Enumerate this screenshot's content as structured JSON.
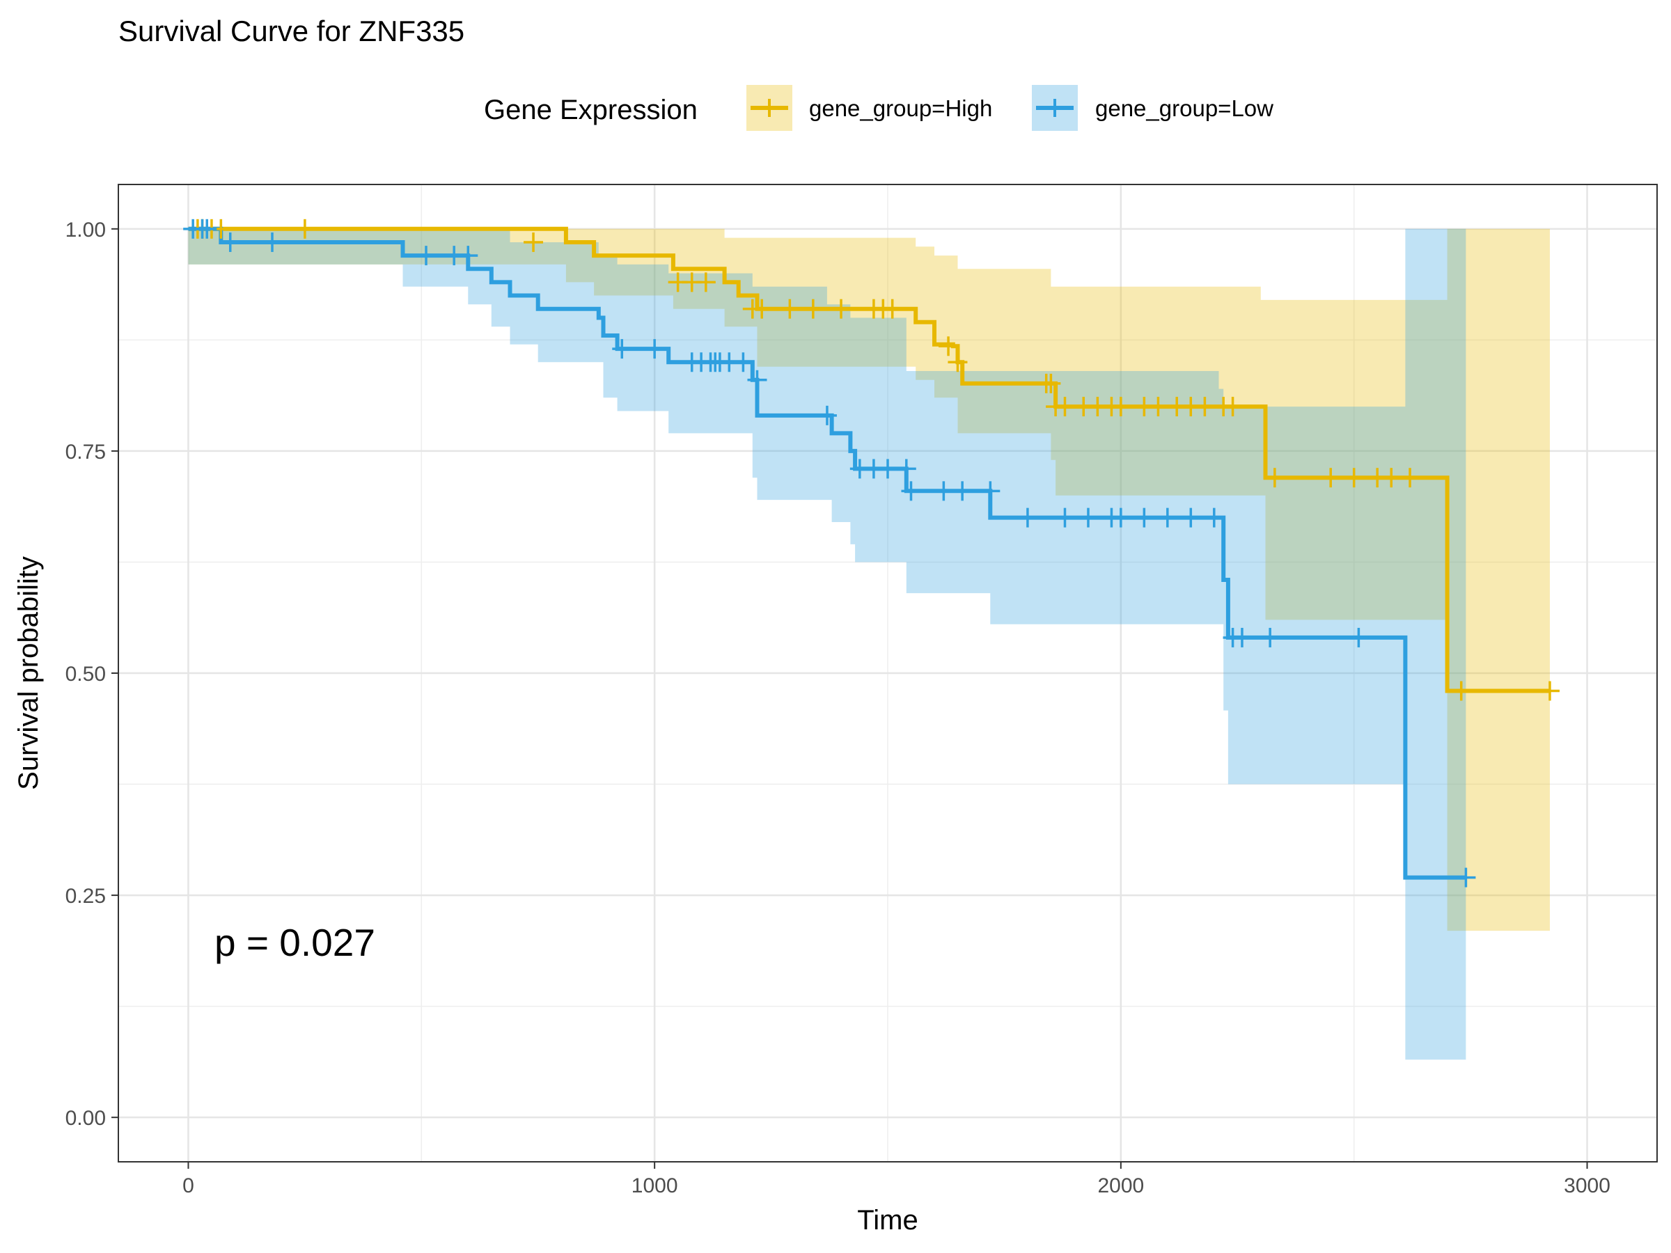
{
  "chart_data": {
    "type": "line",
    "subtype": "kaplan-meier",
    "title": "Survival Curve for ZNF335",
    "xlabel": "Time",
    "ylabel": "Survival probability",
    "xlim": [
      -150,
      3150
    ],
    "ylim": [
      -0.05,
      1.05
    ],
    "xticks": [
      0,
      1000,
      2000,
      3000
    ],
    "xtick_labels": [
      "0",
      "1000",
      "2000",
      "3000"
    ],
    "yticks": [
      0,
      0.25,
      0.5,
      0.75,
      1.0
    ],
    "ytick_labels": [
      "0.00",
      "0.25",
      "0.50",
      "0.75",
      "1.00"
    ],
    "grid": true,
    "legend": {
      "title": "Gene Expression",
      "position": "top"
    },
    "annotation": "p = 0.027",
    "series": [
      {
        "name": "gene_group=High",
        "color": "#E7B800",
        "steps": [
          [
            0,
            1.0
          ],
          [
            290,
            1.0
          ],
          [
            810,
            0.985
          ],
          [
            870,
            0.97
          ],
          [
            1040,
            0.955
          ],
          [
            1150,
            0.94
          ],
          [
            1180,
            0.925
          ],
          [
            1220,
            0.91
          ],
          [
            1550,
            0.91
          ],
          [
            1560,
            0.895
          ],
          [
            1600,
            0.87
          ],
          [
            1640,
            0.868
          ],
          [
            1650,
            0.85
          ],
          [
            1660,
            0.826
          ],
          [
            1850,
            0.826
          ],
          [
            1860,
            0.8
          ],
          [
            2300,
            0.8
          ],
          [
            2310,
            0.72
          ],
          [
            2690,
            0.72
          ],
          [
            2700,
            0.48
          ],
          [
            2920,
            0.48
          ]
        ],
        "ci_upper": [
          [
            0,
            1.0
          ],
          [
            1050,
            1.0
          ],
          [
            1150,
            0.99
          ],
          [
            1560,
            0.98
          ],
          [
            1600,
            0.97
          ],
          [
            1650,
            0.955
          ],
          [
            1850,
            0.935
          ],
          [
            2300,
            0.92
          ],
          [
            2620,
            0.92
          ],
          [
            2700,
            1.0
          ],
          [
            2920,
            1.0
          ]
        ],
        "ci_lower": [
          [
            0,
            0.96
          ],
          [
            290,
            0.96
          ],
          [
            810,
            0.94
          ],
          [
            870,
            0.925
          ],
          [
            1040,
            0.91
          ],
          [
            1150,
            0.89
          ],
          [
            1220,
            0.845
          ],
          [
            1550,
            0.845
          ],
          [
            1560,
            0.83
          ],
          [
            1600,
            0.81
          ],
          [
            1650,
            0.77
          ],
          [
            1850,
            0.74
          ],
          [
            1860,
            0.7
          ],
          [
            2300,
            0.7
          ],
          [
            2310,
            0.56
          ],
          [
            2690,
            0.56
          ],
          [
            2700,
            0.21
          ],
          [
            2920,
            0.21
          ]
        ],
        "censor_times": [
          [
            20,
            1.0
          ],
          [
            30,
            1.0
          ],
          [
            50,
            1.0
          ],
          [
            70,
            1.0
          ],
          [
            250,
            1.0
          ],
          [
            740,
            0.985
          ],
          [
            1050,
            0.94
          ],
          [
            1080,
            0.94
          ],
          [
            1110,
            0.94
          ],
          [
            1210,
            0.91
          ],
          [
            1230,
            0.91
          ],
          [
            1290,
            0.91
          ],
          [
            1340,
            0.91
          ],
          [
            1400,
            0.91
          ],
          [
            1470,
            0.91
          ],
          [
            1490,
            0.91
          ],
          [
            1510,
            0.91
          ],
          [
            1630,
            0.868
          ],
          [
            1650,
            0.85
          ],
          [
            1840,
            0.826
          ],
          [
            1850,
            0.826
          ],
          [
            1860,
            0.8
          ],
          [
            1880,
            0.8
          ],
          [
            1920,
            0.8
          ],
          [
            1950,
            0.8
          ],
          [
            1980,
            0.8
          ],
          [
            2000,
            0.8
          ],
          [
            2050,
            0.8
          ],
          [
            2080,
            0.8
          ],
          [
            2120,
            0.8
          ],
          [
            2150,
            0.8
          ],
          [
            2180,
            0.8
          ],
          [
            2220,
            0.8
          ],
          [
            2240,
            0.8
          ],
          [
            2330,
            0.72
          ],
          [
            2450,
            0.72
          ],
          [
            2500,
            0.72
          ],
          [
            2550,
            0.72
          ],
          [
            2580,
            0.72
          ],
          [
            2620,
            0.72
          ],
          [
            2730,
            0.48
          ],
          [
            2920,
            0.48
          ]
        ]
      },
      {
        "name": "gene_group=Low",
        "color": "#2E9FDF",
        "steps": [
          [
            0,
            1.0
          ],
          [
            70,
            0.985
          ],
          [
            460,
            0.97
          ],
          [
            600,
            0.955
          ],
          [
            650,
            0.94
          ],
          [
            690,
            0.925
          ],
          [
            750,
            0.91
          ],
          [
            880,
            0.9
          ],
          [
            890,
            0.88
          ],
          [
            920,
            0.865
          ],
          [
            1030,
            0.85
          ],
          [
            1210,
            0.83
          ],
          [
            1220,
            0.79
          ],
          [
            1370,
            0.79
          ],
          [
            1380,
            0.77
          ],
          [
            1420,
            0.75
          ],
          [
            1430,
            0.73
          ],
          [
            1530,
            0.73
          ],
          [
            1540,
            0.705
          ],
          [
            1720,
            0.705
          ],
          [
            1720,
            0.675
          ],
          [
            2210,
            0.675
          ],
          [
            2220,
            0.605
          ],
          [
            2230,
            0.54
          ],
          [
            2610,
            0.54
          ],
          [
            2610,
            0.27
          ],
          [
            2740,
            0.27
          ]
        ],
        "ci_upper": [
          [
            0,
            1.0
          ],
          [
            460,
            1.0
          ],
          [
            690,
            0.985
          ],
          [
            880,
            0.97
          ],
          [
            920,
            0.96
          ],
          [
            1030,
            0.95
          ],
          [
            1210,
            0.935
          ],
          [
            1370,
            0.915
          ],
          [
            1420,
            0.9
          ],
          [
            1540,
            0.84
          ],
          [
            1720,
            0.84
          ],
          [
            2210,
            0.82
          ],
          [
            2220,
            0.8
          ],
          [
            2610,
            0.8
          ],
          [
            2610,
            1.0
          ],
          [
            2740,
            1.0
          ]
        ],
        "ci_lower": [
          [
            0,
            0.96
          ],
          [
            460,
            0.935
          ],
          [
            600,
            0.915
          ],
          [
            650,
            0.89
          ],
          [
            690,
            0.87
          ],
          [
            750,
            0.85
          ],
          [
            890,
            0.81
          ],
          [
            920,
            0.795
          ],
          [
            1030,
            0.77
          ],
          [
            1210,
            0.72
          ],
          [
            1220,
            0.695
          ],
          [
            1380,
            0.67
          ],
          [
            1420,
            0.645
          ],
          [
            1430,
            0.625
          ],
          [
            1540,
            0.59
          ],
          [
            1720,
            0.555
          ],
          [
            2220,
            0.458
          ],
          [
            2230,
            0.375
          ],
          [
            2610,
            0.375
          ],
          [
            2610,
            0.065
          ],
          [
            2740,
            0.065
          ]
        ],
        "censor_times": [
          [
            10,
            1.0
          ],
          [
            30,
            1.0
          ],
          [
            40,
            1.0
          ],
          [
            90,
            0.985
          ],
          [
            180,
            0.985
          ],
          [
            510,
            0.97
          ],
          [
            570,
            0.97
          ],
          [
            600,
            0.97
          ],
          [
            930,
            0.865
          ],
          [
            1000,
            0.865
          ],
          [
            1080,
            0.85
          ],
          [
            1100,
            0.85
          ],
          [
            1120,
            0.85
          ],
          [
            1130,
            0.85
          ],
          [
            1140,
            0.85
          ],
          [
            1160,
            0.85
          ],
          [
            1190,
            0.85
          ],
          [
            1220,
            0.83
          ],
          [
            1370,
            0.79
          ],
          [
            1440,
            0.73
          ],
          [
            1470,
            0.73
          ],
          [
            1500,
            0.73
          ],
          [
            1540,
            0.73
          ],
          [
            1550,
            0.705
          ],
          [
            1620,
            0.705
          ],
          [
            1660,
            0.705
          ],
          [
            1720,
            0.705
          ],
          [
            1800,
            0.675
          ],
          [
            1880,
            0.675
          ],
          [
            1930,
            0.675
          ],
          [
            1980,
            0.675
          ],
          [
            2000,
            0.675
          ],
          [
            2050,
            0.675
          ],
          [
            2100,
            0.675
          ],
          [
            2150,
            0.675
          ],
          [
            2200,
            0.675
          ],
          [
            2240,
            0.54
          ],
          [
            2260,
            0.54
          ],
          [
            2320,
            0.54
          ],
          [
            2510,
            0.54
          ],
          [
            2740,
            0.27
          ]
        ]
      }
    ]
  }
}
